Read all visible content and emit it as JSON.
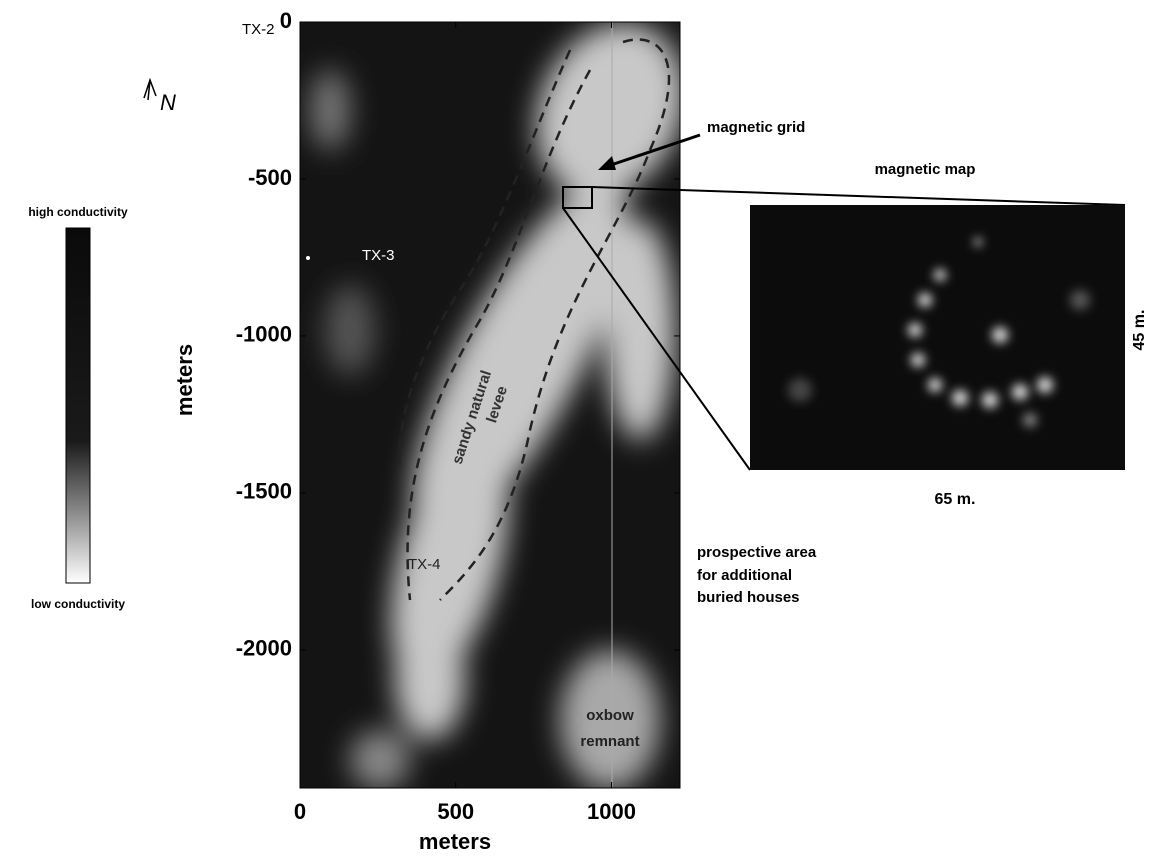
{
  "map": {
    "xlabel": "meters",
    "ylabel": "meters",
    "xlim": [
      0,
      1220
    ],
    "ylim": [
      -2440,
      0
    ],
    "xticks": [
      0,
      500,
      1000
    ],
    "yticks": [
      0,
      -500,
      -1000,
      -1500,
      -2000
    ],
    "sites": [
      "TX-2",
      "TX-3",
      "TX-4"
    ],
    "levee": [
      "sandy natural",
      "levee"
    ],
    "oxbow": [
      "oxbow",
      "remnant"
    ]
  },
  "north": "N",
  "legend": {
    "high": "high conductivity",
    "low": "low conductivity"
  },
  "annotations": {
    "grid": "magnetic grid",
    "prospective": [
      "prospective area",
      "for additional",
      "buried houses"
    ]
  },
  "inset": {
    "title": "magnetic map",
    "width": "65 m.",
    "height": "45 m."
  }
}
